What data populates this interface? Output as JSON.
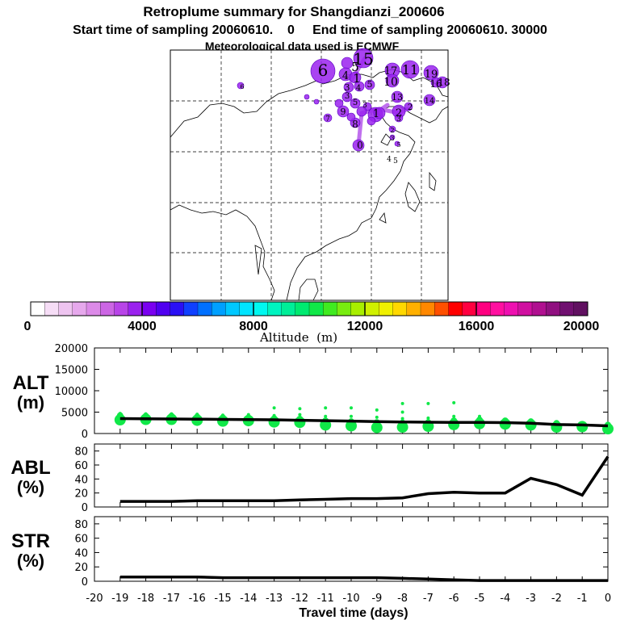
{
  "header": {
    "title": "Retroplume summary for Shangdianzi_200606",
    "subtitle": "Start time of sampling 20060610.    0     End time of sampling 20060610. 30000",
    "met_line": "Meteorological data used is ECMWF"
  },
  "colorbar": {
    "ticks": [
      "0",
      "4000",
      "8000",
      "12000",
      "16000",
      "20000"
    ],
    "label": "Altitude  (m)",
    "colors": [
      "#ffffff",
      "#f6ddf6",
      "#eec4f0",
      "#e6a8ec",
      "#dc8ae8",
      "#cc66e4",
      "#b844e8",
      "#9a22ee",
      "#7a00f0",
      "#5000f0",
      "#2a10f4",
      "#1040ff",
      "#0070ff",
      "#00a0ff",
      "#00c8ff",
      "#00e4ff",
      "#00f8f0",
      "#00f4c0",
      "#00ee98",
      "#00ea70",
      "#10e848",
      "#40ea20",
      "#78ec10",
      "#a8ee00",
      "#d0f000",
      "#f0f000",
      "#ffd800",
      "#ffb000",
      "#ff8800",
      "#ff5000",
      "#ff0000",
      "#ff0040",
      "#ff0080",
      "#ff10a0",
      "#ee10b0",
      "#d010a0",
      "#b01090",
      "#901080",
      "#701070",
      "#601060"
    ]
  },
  "map": {
    "plume_color": "#9a22ee",
    "labels": [
      {
        "t": "6"
      },
      {
        "t": "15"
      },
      {
        "t": "5"
      },
      {
        "t": "4"
      },
      {
        "t": "1"
      },
      {
        "t": "17"
      },
      {
        "t": "11"
      },
      {
        "t": "19"
      },
      {
        "t": "10"
      },
      {
        "t": "16"
      },
      {
        "t": "18"
      },
      {
        "t": "3"
      },
      {
        "t": "4"
      },
      {
        "t": "5"
      },
      {
        "t": "3"
      },
      {
        "t": "5"
      },
      {
        "t": "9"
      },
      {
        "t": "3"
      },
      {
        "t": "8"
      },
      {
        "t": "1"
      },
      {
        "t": "13"
      },
      {
        "t": "2"
      },
      {
        "t": "2"
      },
      {
        "t": "14"
      },
      {
        "t": "7"
      },
      {
        "t": "3"
      },
      {
        "t": "2"
      },
      {
        "t": "5"
      },
      {
        "t": "3"
      },
      {
        "t": "0"
      },
      {
        "t": "4"
      },
      {
        "t": "5"
      },
      {
        "t": "6"
      }
    ]
  },
  "chart_data": [
    {
      "type": "scatter",
      "panel": "ALT (m)",
      "ylabel": [
        "ALT",
        "(m)"
      ],
      "ylim": [
        0,
        20000
      ],
      "yticks": [
        0,
        5000,
        10000,
        15000,
        20000
      ],
      "x": [
        -19,
        -18,
        -17,
        -16,
        -15,
        -14,
        -13,
        -12,
        -11,
        -10,
        -9,
        -8,
        -7,
        -6,
        -5,
        -4,
        -3,
        -2,
        -1,
        0
      ],
      "mean_line": [
        3500,
        3450,
        3400,
        3350,
        3300,
        3250,
        3200,
        3100,
        3000,
        2900,
        2800,
        2700,
        2650,
        2600,
        2600,
        2550,
        2400,
        2100,
        2000,
        1800
      ],
      "points": [
        {
          "x": -19,
          "y": [
            3200,
            4200,
            4700
          ]
        },
        {
          "x": -18,
          "y": [
            3300,
            4100,
            4600
          ]
        },
        {
          "x": -17,
          "y": [
            3300,
            4100,
            4600
          ]
        },
        {
          "x": -16,
          "y": [
            3100,
            3900,
            4500
          ]
        },
        {
          "x": -15,
          "y": [
            2900,
            3700,
            4300
          ]
        },
        {
          "x": -14,
          "y": [
            3000,
            3700,
            4400
          ]
        },
        {
          "x": -13,
          "y": [
            2700,
            3500,
            4200,
            6000
          ]
        },
        {
          "x": -12,
          "y": [
            2600,
            3400,
            4400,
            5800
          ]
        },
        {
          "x": -11,
          "y": [
            2000,
            3000,
            4000,
            6000
          ]
        },
        {
          "x": -10,
          "y": [
            1800,
            2800,
            4000,
            6000
          ]
        },
        {
          "x": -9,
          "y": [
            1400,
            2600,
            3800,
            5500
          ]
        },
        {
          "x": -8,
          "y": [
            1500,
            2500,
            3500,
            5000,
            7000
          ]
        },
        {
          "x": -7,
          "y": [
            1700,
            2600,
            3600,
            7000
          ]
        },
        {
          "x": -6,
          "y": [
            2100,
            3000,
            4000,
            7200
          ]
        },
        {
          "x": -5,
          "y": [
            2300,
            3200,
            4000
          ]
        },
        {
          "x": -4,
          "y": [
            2200,
            3000
          ]
        },
        {
          "x": -3,
          "y": [
            2000,
            2800
          ]
        },
        {
          "x": -2,
          "y": [
            1500,
            2400
          ]
        },
        {
          "x": -1,
          "y": [
            1600,
            2200
          ]
        },
        {
          "x": 0,
          "y": [
            1100,
            2000
          ]
        }
      ],
      "point_color": "#10e848"
    },
    {
      "type": "line",
      "panel": "ABL (%)",
      "ylabel": [
        "ABL",
        "(%)"
      ],
      "ylim": [
        0,
        90
      ],
      "yticks": [
        0,
        20,
        40,
        60,
        80
      ],
      "x": [
        -19,
        -18,
        -17,
        -16,
        -15,
        -14,
        -13,
        -12,
        -11,
        -10,
        -9,
        -8,
        -7,
        -6,
        -5,
        -4,
        -3,
        -2,
        -1,
        0
      ],
      "values": [
        8,
        8,
        8,
        9,
        9,
        9,
        9,
        10,
        11,
        12,
        12,
        13,
        19,
        21,
        20,
        20,
        41,
        32,
        17,
        72
      ]
    },
    {
      "type": "line",
      "panel": "STR (%)",
      "ylabel": [
        "STR",
        "(%)"
      ],
      "ylim": [
        0,
        90
      ],
      "yticks": [
        0,
        20,
        40,
        60,
        80
      ],
      "x": [
        -19,
        -18,
        -17,
        -16,
        -15,
        -14,
        -13,
        -12,
        -11,
        -10,
        -9,
        -8,
        -7,
        -6,
        -5,
        -4,
        -3,
        -2,
        -1,
        0
      ],
      "values": [
        6,
        6,
        6,
        6,
        5,
        5,
        5,
        5,
        5,
        5,
        5,
        4,
        3,
        2,
        1,
        1,
        1,
        1,
        1,
        1
      ]
    }
  ],
  "xaxis": {
    "ticks": [
      "-20",
      "-19",
      "-18",
      "-17",
      "-16",
      "-15",
      "-14",
      "-13",
      "-12",
      "-11",
      "-10",
      "-9",
      "-8",
      "-7",
      "-6",
      "-5",
      "-4",
      "-3",
      "-2",
      "-1",
      "0"
    ],
    "label": "Travel time (days)"
  }
}
